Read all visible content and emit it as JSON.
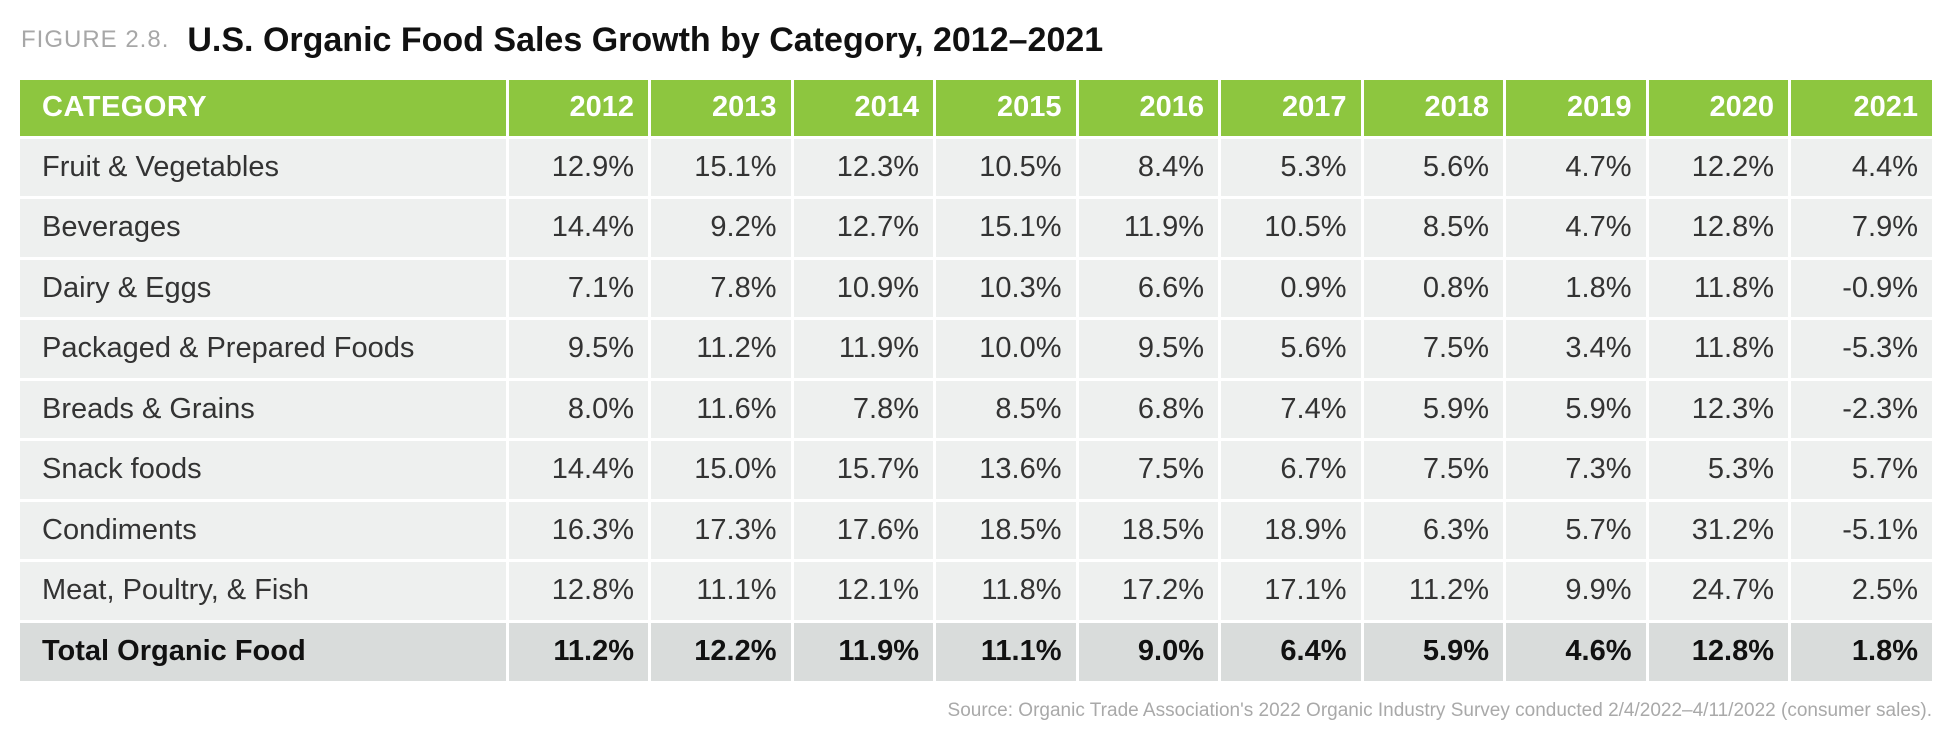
{
  "figure": {
    "label": "FIGURE 2.8.",
    "title": "U.S. Organic Food Sales Growth by Category, 2012–2021"
  },
  "colors": {
    "header_bg": "#8dc63f",
    "header_text": "#ffffff",
    "row_bg": "#eef0ef",
    "total_row_bg": "#d9dcdb",
    "source_text": "#a9a9a9"
  },
  "chart_data": {
    "type": "table",
    "title": "U.S. Organic Food Sales Growth by Category, 2012–2021",
    "columns": [
      "CATEGORY",
      "2012",
      "2013",
      "2014",
      "2015",
      "2016",
      "2017",
      "2018",
      "2019",
      "2020",
      "2021"
    ],
    "rows": [
      [
        "Fruit & Vegetables",
        "12.9%",
        "15.1%",
        "12.3%",
        "10.5%",
        "8.4%",
        "5.3%",
        "5.6%",
        "4.7%",
        "12.2%",
        "4.4%"
      ],
      [
        "Beverages",
        "14.4%",
        "9.2%",
        "12.7%",
        "15.1%",
        "11.9%",
        "10.5%",
        "8.5%",
        "4.7%",
        "12.8%",
        "7.9%"
      ],
      [
        "Dairy & Eggs",
        "7.1%",
        "7.8%",
        "10.9%",
        "10.3%",
        "6.6%",
        "0.9%",
        "0.8%",
        "1.8%",
        "11.8%",
        "-0.9%"
      ],
      [
        "Packaged & Prepared Foods",
        "9.5%",
        "11.2%",
        "11.9%",
        "10.0%",
        "9.5%",
        "5.6%",
        "7.5%",
        "3.4%",
        "11.8%",
        "-5.3%"
      ],
      [
        "Breads & Grains",
        "8.0%",
        "11.6%",
        "7.8%",
        "8.5%",
        "6.8%",
        "7.4%",
        "5.9%",
        "5.9%",
        "12.3%",
        "-2.3%"
      ],
      [
        "Snack foods",
        "14.4%",
        "15.0%",
        "15.7%",
        "13.6%",
        "7.5%",
        "6.7%",
        "7.5%",
        "7.3%",
        "5.3%",
        "5.7%"
      ],
      [
        "Condiments",
        "16.3%",
        "17.3%",
        "17.6%",
        "18.5%",
        "18.5%",
        "18.9%",
        "6.3%",
        "5.7%",
        "31.2%",
        "-5.1%"
      ],
      [
        "Meat, Poultry, & Fish",
        "12.8%",
        "11.1%",
        "12.1%",
        "11.8%",
        "17.2%",
        "17.1%",
        "11.2%",
        "9.9%",
        "24.7%",
        "2.5%"
      ]
    ],
    "total_row": [
      "Total Organic Food",
      "11.2%",
      "12.2%",
      "11.9%",
      "11.1%",
      "9.0%",
      "6.4%",
      "5.9%",
      "4.6%",
      "12.8%",
      "1.8%"
    ]
  },
  "source_note": "Source: Organic Trade Association's 2022 Organic Industry Survey conducted 2/4/2022–4/11/2022 (consumer sales)."
}
